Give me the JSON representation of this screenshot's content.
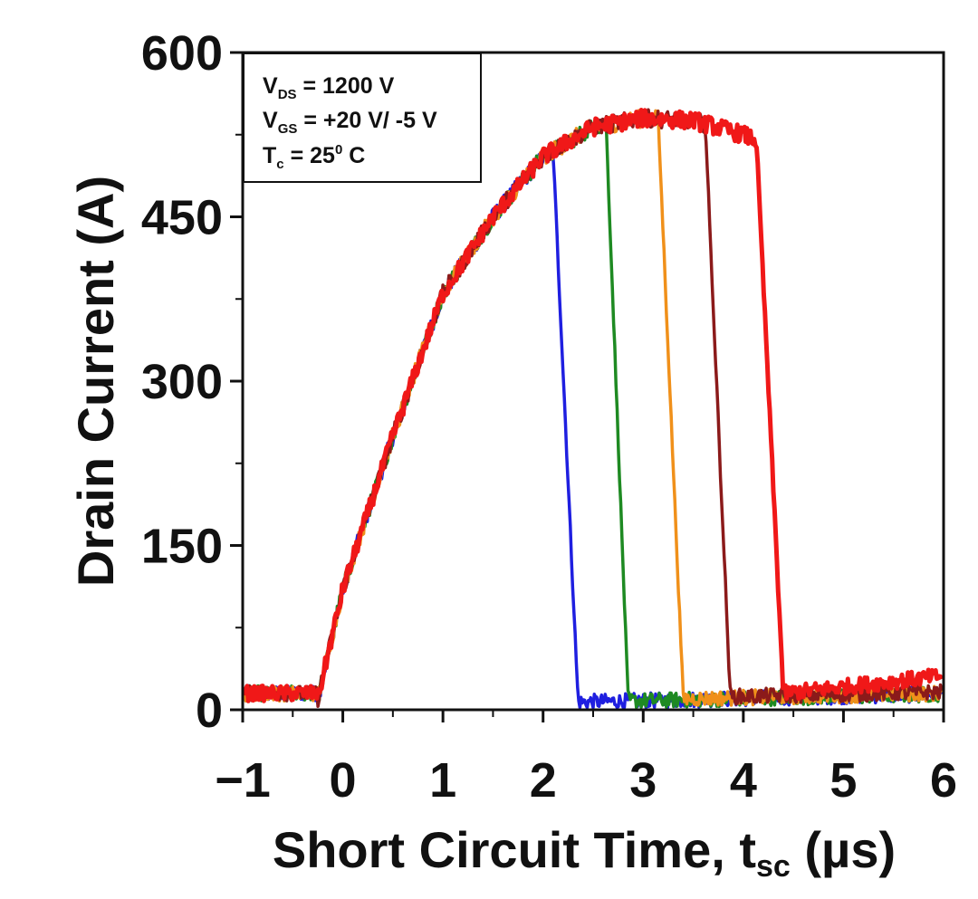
{
  "chart_data": {
    "type": "line",
    "title": "",
    "xlabel_main": "Short Circuit Time, t",
    "xlabel_sub": "sc",
    "xlabel_unit": " (µs)",
    "ylabel": "Drain Current (A)",
    "xlim": [
      -1,
      6
    ],
    "ylim": [
      0,
      600
    ],
    "x_ticks": [
      -1,
      0,
      1,
      2,
      3,
      4,
      5,
      6
    ],
    "x_tick_labels": [
      "−1",
      "0",
      "1",
      "2",
      "3",
      "4",
      "5",
      "6"
    ],
    "y_ticks": [
      0,
      150,
      300,
      450,
      600
    ],
    "y_tick_labels": [
      "0",
      "150",
      "300",
      "450",
      "600"
    ],
    "annotation": {
      "line1": {
        "main": "V",
        "sub": "DS",
        "rest": " = 1200 V"
      },
      "line2": {
        "main": "V",
        "sub": "GS",
        "rest": " = +20 V/ -5 V"
      },
      "line3": {
        "main": "T",
        "sub": "c",
        "rest": " = 25",
        "sup": "0",
        "tail": " C"
      }
    },
    "series": [
      {
        "name": "blue",
        "color": "#1f1fe0",
        "turn_off_start_us": 2.1,
        "turn_off_end_us": 2.35,
        "tail_current_a": 7
      },
      {
        "name": "green",
        "color": "#1e8a22",
        "turn_off_start_us": 2.63,
        "turn_off_end_us": 2.85,
        "tail_current_a": 8
      },
      {
        "name": "orange",
        "color": "#f0901a",
        "turn_off_start_us": 3.15,
        "turn_off_end_us": 3.4,
        "tail_current_a": 10
      },
      {
        "name": "dark-red",
        "color": "#8b1a1a",
        "turn_off_start_us": 3.62,
        "turn_off_end_us": 3.87,
        "tail_current_a": 12
      },
      {
        "name": "red",
        "color": "#f01818",
        "turn_off_start_us": 4.13,
        "turn_off_end_us": 4.4,
        "tail_current_a": 15
      }
    ],
    "rise_profile": {
      "start_us": -0.25,
      "points": [
        [
          -0.25,
          10
        ],
        [
          0,
          110
        ],
        [
          0.5,
          250
        ],
        [
          1,
          380
        ],
        [
          1.5,
          450
        ],
        [
          2,
          505
        ],
        [
          2.5,
          532
        ],
        [
          3,
          540
        ],
        [
          3.5,
          538
        ],
        [
          4,
          525
        ],
        [
          4.13,
          520
        ]
      ]
    }
  }
}
